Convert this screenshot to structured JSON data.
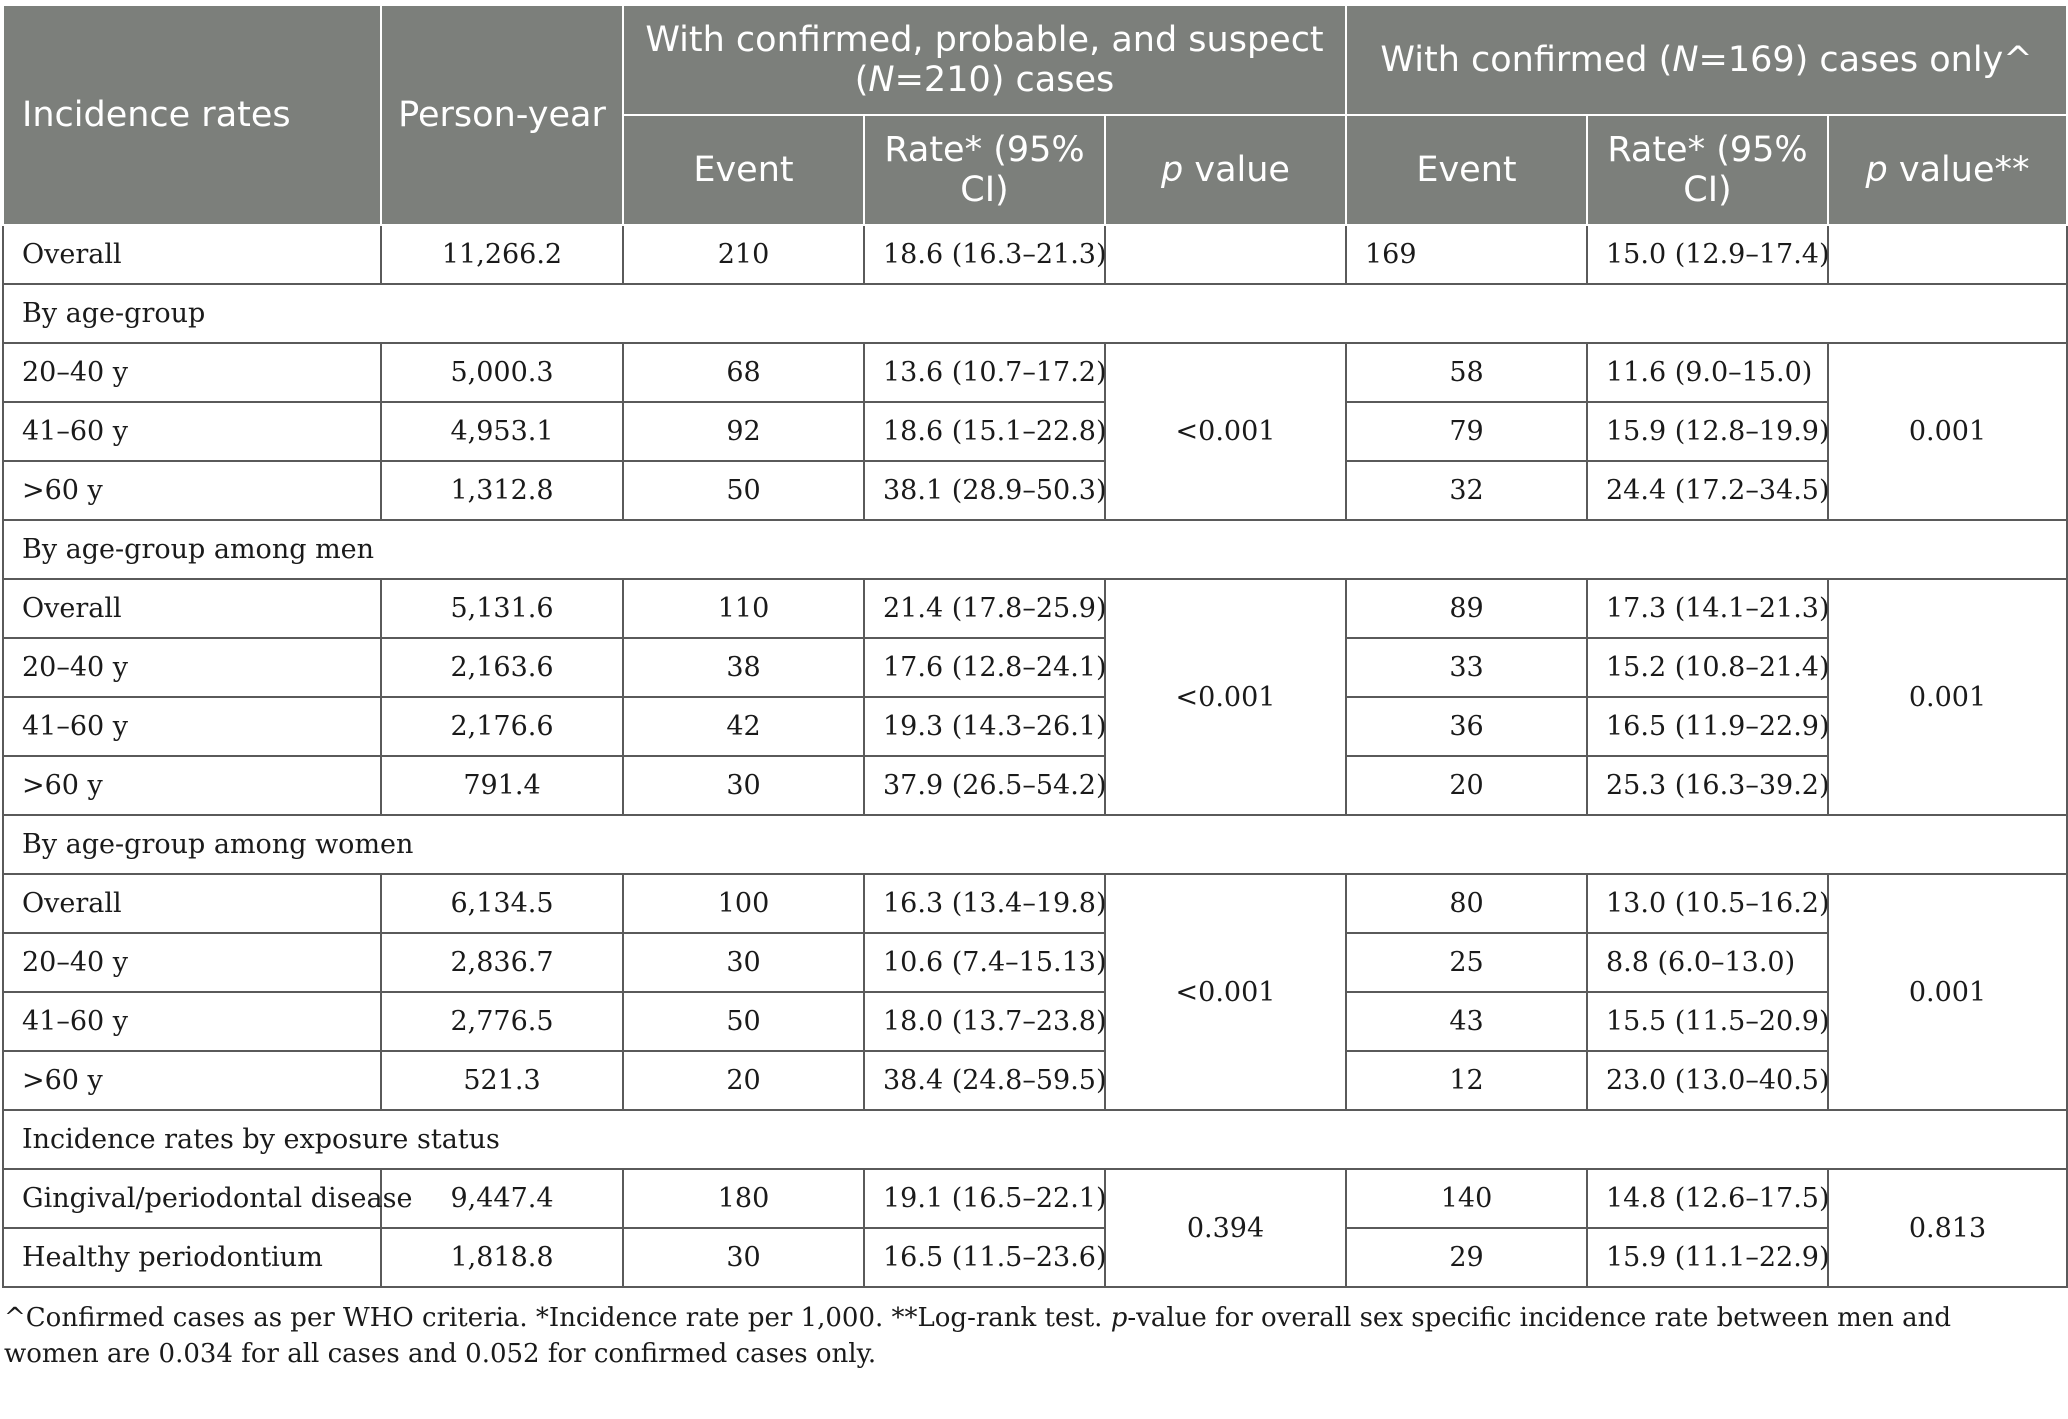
{
  "header": {
    "col_incidence": "Incidence rates",
    "col_person_year": "Person-year",
    "group1_pre": "With confirmed, probable, and suspect (",
    "group1_n": "N",
    "group1_post": "=210) cases",
    "group2_pre": "With confirmed (",
    "group2_n": "N",
    "group2_post": "=169) cases only^",
    "event": "Event",
    "rate": "Rate* (95% CI)",
    "p_italic": "p",
    "p_value_suffix_1": " value",
    "p_value_suffix_2": " value**"
  },
  "rows": [
    {
      "type": "data",
      "label": "Overall",
      "py": "11,266.2",
      "e1": "210",
      "r1": "18.6 (16.3–21.3)",
      "e2": "169",
      "r2": "15.0 (12.9–17.4)"
    },
    {
      "type": "section",
      "label": "By age-group"
    },
    {
      "type": "data",
      "label": "20–40 y",
      "py": "5,000.3",
      "e1": "68",
      "r1": "13.6 (10.7–17.2)",
      "e2": "58",
      "r2": "11.6 (9.0–15.0)"
    },
    {
      "type": "data",
      "label": "41–60 y",
      "py": "4,953.1",
      "e1": "92",
      "r1": "18.6 (15.1–22.8)",
      "e2": "79",
      "r2": "15.9 (12.8–19.9)"
    },
    {
      "type": "data",
      "label": ">60 y",
      "py": "1,312.8",
      "e1": "50",
      "r1": "38.1 (28.9–50.3)",
      "e2": "32",
      "r2": "24.4 (17.2–34.5)"
    },
    {
      "type": "section",
      "label": "By age-group among men"
    },
    {
      "type": "data",
      "label": "Overall",
      "py": "5,131.6",
      "e1": "110",
      "r1": "21.4 (17.8–25.9)",
      "e2": "89",
      "r2": "17.3 (14.1–21.3)"
    },
    {
      "type": "data",
      "label": "20–40 y",
      "py": "2,163.6",
      "e1": "38",
      "r1": "17.6 (12.8–24.1)",
      "e2": "33",
      "r2": "15.2 (10.8–21.4)"
    },
    {
      "type": "data",
      "label": "41–60 y",
      "py": "2,176.6",
      "e1": "42",
      "r1": "19.3 (14.3–26.1)",
      "e2": "36",
      "r2": "16.5 (11.9–22.9)"
    },
    {
      "type": "data",
      "label": ">60 y",
      "py": "791.4",
      "e1": "30",
      "r1": "37.9 (26.5–54.2)",
      "e2": "20",
      "r2": "25.3 (16.3–39.2)"
    },
    {
      "type": "section",
      "label": "By age-group among women"
    },
    {
      "type": "data",
      "label": "Overall",
      "py": "6,134.5",
      "e1": "100",
      "r1": "16.3 (13.4–19.8)",
      "e2": "80",
      "r2": "13.0 (10.5–16.2)"
    },
    {
      "type": "data",
      "label": "20–40 y",
      "py": "2,836.7",
      "e1": "30",
      "r1": "10.6 (7.4–15.13)",
      "e2": "25",
      "r2": "8.8 (6.0–13.0)"
    },
    {
      "type": "data",
      "label": "41–60 y",
      "py": "2,776.5",
      "e1": "50",
      "r1": "18.0 (13.7–23.8)",
      "e2": "43",
      "r2": "15.5 (11.5–20.9)"
    },
    {
      "type": "data",
      "label": ">60 y",
      "py": "521.3",
      "e1": "20",
      "r1": "38.4 (24.8–59.5)",
      "e2": "12",
      "r2": "23.0 (13.0–40.5)"
    },
    {
      "type": "section",
      "label": "Incidence rates by exposure status"
    },
    {
      "type": "data",
      "label": "Gingival/periodontal disease",
      "py": "9,447.4",
      "e1": "180",
      "r1": "19.1 (16.5–22.1)",
      "e2": "140",
      "r2": "14.8 (12.6–17.5)"
    },
    {
      "type": "data",
      "label": "Healthy periodontium",
      "py": "1,818.8",
      "e1": "30",
      "r1": "16.5 (11.5–23.6)",
      "e2": "29",
      "r2": "15.9 (11.1–22.9)"
    }
  ],
  "p_groups": {
    "age": {
      "p1": "<0.001",
      "p2": "0.001"
    },
    "men": {
      "p1": "<0.001",
      "p2": "0.001"
    },
    "women": {
      "p1": "<0.001",
      "p2": "0.001"
    },
    "exposure": {
      "p1": "0.394",
      "p2": "0.813"
    }
  },
  "footnote": {
    "part1": "^Confirmed cases as per WHO criteria. *Incidence rate per 1,000. **Log-rank test. ",
    "p_italic": "p",
    "part2": "-value for overall sex specific incidence rate between men and women are 0.034 for all cases and 0.052 for confirmed cases only."
  }
}
